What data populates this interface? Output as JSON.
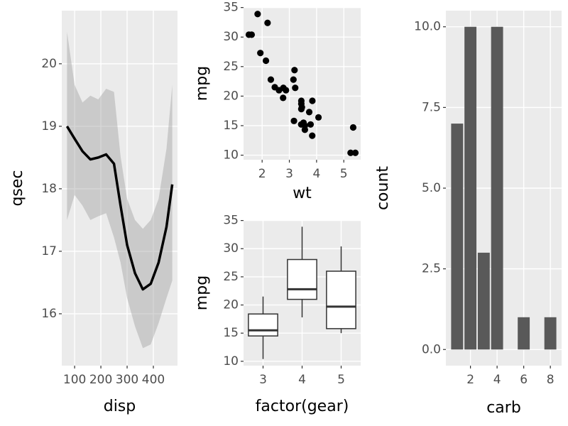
{
  "chart_data": [
    {
      "type": "line",
      "x_label": "disp",
      "y_label": "qsec",
      "x": [
        71,
        100,
        130,
        160,
        190,
        220,
        250,
        275,
        300,
        330,
        360,
        390,
        420,
        450,
        472
      ],
      "values": [
        19.0,
        18.8,
        18.6,
        18.47,
        18.5,
        18.55,
        18.4,
        17.73,
        17.1,
        16.65,
        16.39,
        16.48,
        16.82,
        17.39,
        18.07
      ],
      "upper": [
        20.51,
        19.66,
        19.38,
        19.49,
        19.43,
        19.6,
        19.55,
        18.52,
        17.84,
        17.5,
        17.36,
        17.5,
        17.84,
        18.64,
        19.66
      ],
      "lower": [
        17.5,
        17.9,
        17.73,
        17.5,
        17.56,
        17.61,
        17.22,
        16.82,
        16.25,
        15.8,
        15.45,
        15.51,
        15.85,
        16.25,
        16.53
      ],
      "color": "#000000",
      "ribbon_color": "#999999",
      "xlim": [
        51,
        492
      ],
      "xticks": [
        100,
        200,
        300,
        400
      ],
      "ylim": [
        15.17,
        20.85
      ],
      "yticks": [
        16,
        17,
        18,
        19,
        20
      ],
      "grid": true
    },
    {
      "type": "scatter",
      "x_label": "wt",
      "y_label": "mpg",
      "x": [
        2.62,
        2.875,
        2.32,
        3.215,
        3.44,
        3.46,
        3.57,
        3.19,
        3.15,
        3.44,
        3.44,
        4.07,
        3.73,
        3.78,
        5.25,
        5.424,
        5.345,
        2.2,
        1.615,
        1.835,
        2.465,
        3.52,
        3.435,
        3.84,
        3.845,
        1.935,
        2.14,
        1.513,
        3.17,
        2.77,
        3.57,
        2.78
      ],
      "values": [
        21.0,
        21.0,
        22.8,
        21.4,
        18.7,
        18.1,
        14.3,
        24.4,
        22.8,
        19.2,
        17.8,
        16.4,
        17.3,
        15.2,
        10.4,
        10.4,
        14.7,
        32.4,
        30.4,
        33.9,
        21.5,
        15.5,
        15.2,
        13.3,
        19.2,
        27.3,
        26.0,
        30.4,
        15.8,
        19.7,
        15.0,
        21.4
      ],
      "color": "#000000",
      "xlim": [
        1.317,
        5.62
      ],
      "xticks": [
        2,
        3,
        4,
        5
      ],
      "ylim": [
        9.225,
        35.075
      ],
      "yticks": [
        10,
        15,
        20,
        25,
        30,
        35
      ],
      "grid": true
    },
    {
      "type": "box",
      "x_label": "factor(gear)",
      "y_label": "mpg",
      "categories": [
        "3",
        "4",
        "5"
      ],
      "boxes": [
        {
          "min": 10.4,
          "q1": 14.5,
          "median": 15.5,
          "q3": 18.4,
          "max": 21.5
        },
        {
          "min": 17.8,
          "q1": 21.0,
          "median": 22.8,
          "q3": 28.075,
          "max": 33.9
        },
        {
          "min": 15.0,
          "q1": 15.8,
          "median": 19.7,
          "q3": 26.0,
          "max": 30.4
        }
      ],
      "color": "#333333",
      "ylim": [
        9.225,
        35.075
      ],
      "yticks": [
        10,
        15,
        20,
        25,
        30,
        35
      ],
      "grid": true
    },
    {
      "type": "bar",
      "x_label": "carb",
      "y_label": "count",
      "x": [
        1,
        2,
        3,
        4,
        6,
        8
      ],
      "values": [
        7,
        10,
        3,
        10,
        1,
        1
      ],
      "color": "#595959",
      "xlim": [
        0.155,
        8.845
      ],
      "xticks": [
        2,
        4,
        6,
        8
      ],
      "ylim": [
        -0.5,
        10.5
      ],
      "yticks": [
        {
          "value": 0,
          "label": "0.0"
        },
        {
          "value": 2.5,
          "label": "2.5"
        },
        {
          "value": 5,
          "label": "5.0"
        },
        {
          "value": 7.5,
          "label": "7.5"
        },
        {
          "value": 10,
          "label": "10.0"
        }
      ],
      "grid": true
    }
  ]
}
